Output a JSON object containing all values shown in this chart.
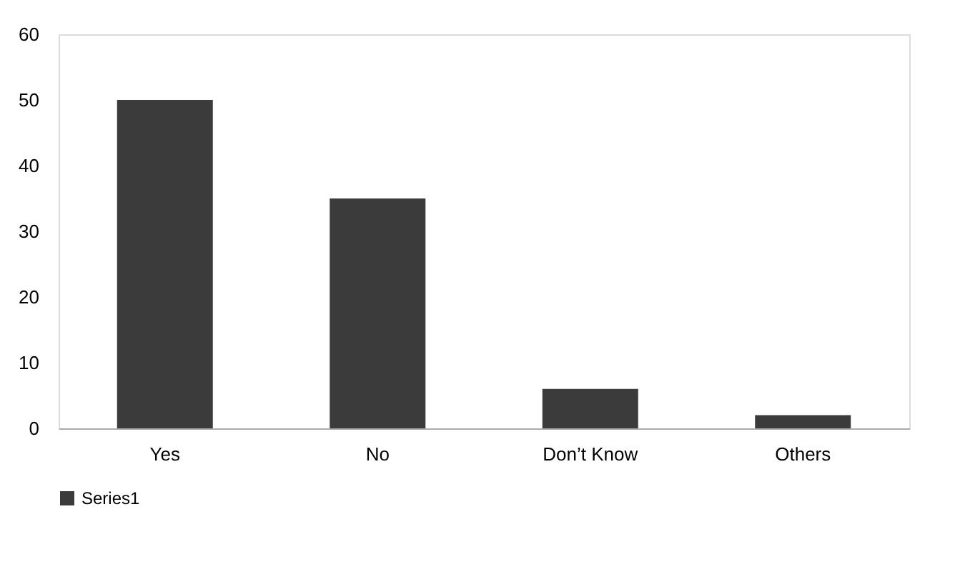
{
  "chart_data": {
    "type": "bar",
    "categories": [
      "Yes",
      "No",
      "Don’t Know",
      "Others"
    ],
    "series": [
      {
        "name": "Series1",
        "color": "#3b3b3b",
        "values": [
          50,
          35,
          6,
          2
        ]
      }
    ],
    "ylim": [
      0,
      60
    ],
    "yticks": [
      0,
      10,
      20,
      30,
      40,
      50,
      60
    ],
    "grid": false,
    "legend": "bottom"
  }
}
